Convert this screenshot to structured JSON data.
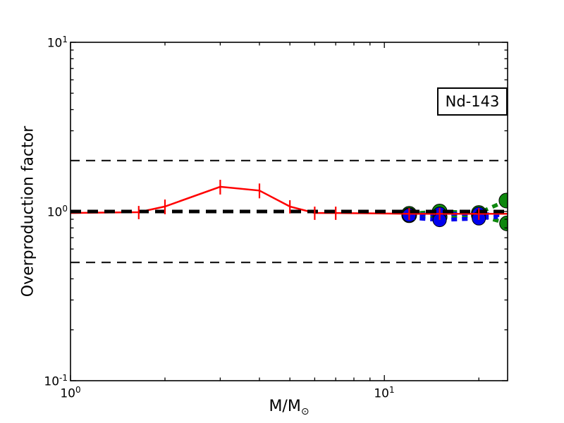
{
  "figure": {
    "background": "#ffffff"
  },
  "chart_data": {
    "type": "line",
    "title": "",
    "annotation": "Nd-143",
    "xlabel_main": "M/M",
    "xlabel_sub": "⊙",
    "ylabel": "Overproduction factor",
    "xscale": "log",
    "yscale": "log",
    "xlim": [
      1.0,
      24.7
    ],
    "ylim": [
      0.1,
      10
    ],
    "grid": false,
    "legend": "none",
    "x_axis": {
      "major": [
        {
          "value": 1,
          "exponent": "0"
        },
        {
          "value": 10,
          "exponent": "1"
        }
      ],
      "minor": [
        2,
        3,
        4,
        5,
        6,
        7,
        8,
        9,
        20
      ]
    },
    "y_axis": {
      "major": [
        {
          "value": 10,
          "exponent": "1"
        },
        {
          "value": 1,
          "exponent": "0"
        },
        {
          "value": 0.1,
          "exponent": "-1"
        }
      ],
      "minor": [
        9,
        8,
        7,
        6,
        5,
        4,
        3,
        2,
        0.9,
        0.8,
        0.7,
        0.6,
        0.5,
        0.4,
        0.3,
        0.2
      ]
    },
    "reference_lines": [
      {
        "name": "factor-2-upper",
        "value": 2.0,
        "color": "#000000",
        "width": 2,
        "dash": "13,9"
      },
      {
        "name": "factor-2-lower",
        "value": 0.5,
        "color": "#000000",
        "width": 2,
        "dash": "13,9"
      },
      {
        "name": "unity-line",
        "value": 1.0,
        "color": "#000000",
        "width": 5,
        "dash": "15,9"
      }
    ],
    "series": [
      {
        "name": "green-model-upper",
        "color": "#0e870e",
        "width": 5.5,
        "dash": "8,7",
        "marker": "circle",
        "marker_size": 10.5,
        "x": [
          12,
          15,
          20,
          24.5
        ],
        "y": [
          0.97,
          1.0,
          0.98,
          1.16
        ],
        "marker_on": [
          true,
          true,
          true,
          true
        ]
      },
      {
        "name": "green-model-lower",
        "color": "#0e870e",
        "width": 5.5,
        "dash": "8,7",
        "marker": "circle",
        "marker_size": 10.5,
        "x": [
          12,
          15,
          20,
          24.6
        ],
        "y": [
          0.95,
          0.93,
          0.95,
          0.85
        ],
        "marker_on": [
          true,
          true,
          true,
          true
        ]
      },
      {
        "name": "blue-model-upper",
        "color": "#0000ee",
        "width": 5.5,
        "dash": "8,7",
        "marker": "circle",
        "marker_size": 9.5,
        "x": [
          12,
          15,
          20,
          23.5
        ],
        "y": [
          0.95,
          0.97,
          0.97,
          0.95
        ],
        "marker_on": [
          true,
          true,
          true,
          false
        ]
      },
      {
        "name": "blue-model-lower",
        "color": "#0000ee",
        "width": 5.5,
        "dash": "8,7",
        "marker": "circle",
        "marker_size": 9.5,
        "x": [
          12,
          15,
          20,
          23
        ],
        "y": [
          0.92,
          0.89,
          0.91,
          0.93
        ],
        "marker_on": [
          false,
          true,
          true,
          false
        ]
      },
      {
        "name": "red-model-errorbar",
        "color": "#ff0000",
        "width": 2.5,
        "dash": null,
        "marker": "errorbar",
        "errorbar_width": 2.2,
        "x": [
          1.0,
          1.65,
          2,
          3,
          4,
          5,
          6,
          7,
          12,
          15,
          20,
          24.7
        ],
        "y": [
          0.98,
          0.99,
          1.07,
          1.4,
          1.33,
          1.07,
          0.98,
          0.98,
          0.97,
          0.97,
          0.97,
          0.97
        ],
        "yerr": [
          0,
          0.09,
          0.1,
          0.1,
          0.1,
          0.09,
          0.09,
          0.09,
          0.08,
          0.08,
          0.08,
          0
        ]
      }
    ]
  }
}
